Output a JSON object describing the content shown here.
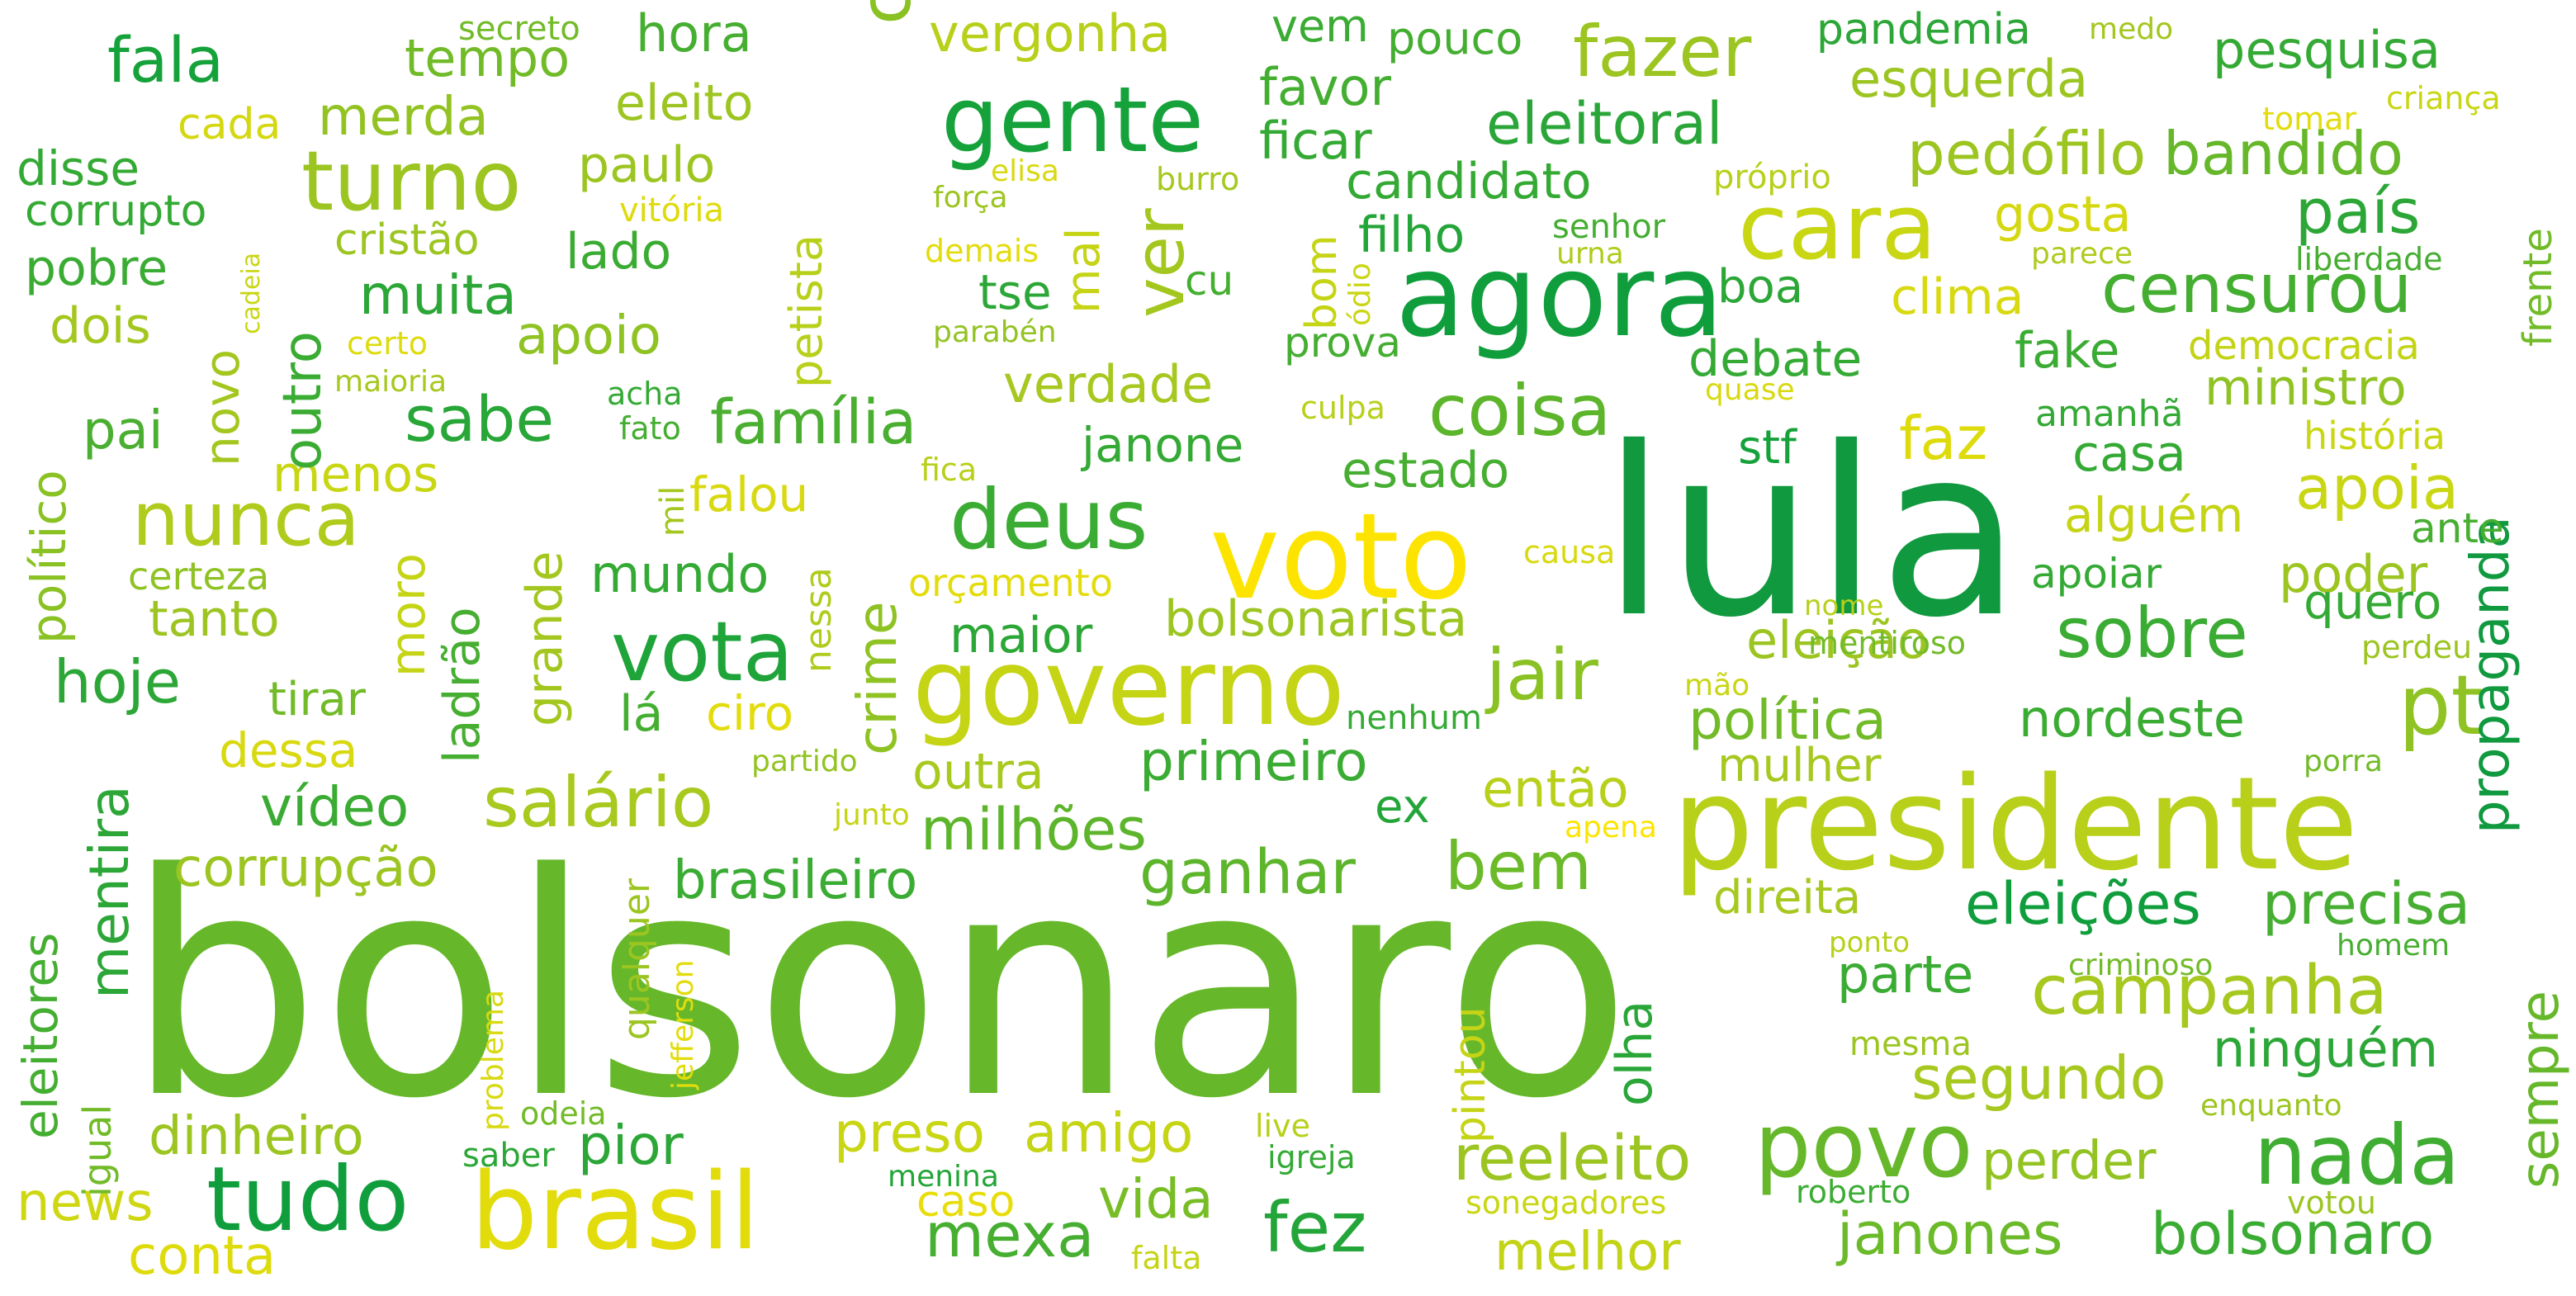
{
  "words": [
    {
      "text": "bolsonaro",
      "color": "#66b82a"
    },
    {
      "text": "lula",
      "color": "#10993e"
    },
    {
      "text": "presidente",
      "color": "#b8d01a"
    },
    {
      "text": "agora",
      "color": "#109e3c"
    },
    {
      "text": "voto",
      "color": "#fde400"
    },
    {
      "text": "governo",
      "color": "#c5d415"
    },
    {
      "text": "brasil",
      "color": "#e3dc0c"
    },
    {
      "text": "gente",
      "color": "#16a23a"
    },
    {
      "text": "tudo",
      "color": "#109e3c"
    },
    {
      "text": "povo",
      "color": "#66b82a"
    },
    {
      "text": "nada",
      "color": "#3ead32"
    },
    {
      "text": "cara",
      "color": "#c9d613"
    },
    {
      "text": "pt",
      "color": "#8fc223"
    },
    {
      "text": "deus",
      "color": "#3bac33"
    },
    {
      "text": "vota",
      "color": "#1fa43a"
    },
    {
      "text": "turno",
      "color": "#9cc521"
    },
    {
      "text": "fez",
      "color": "#24a539"
    },
    {
      "text": "coisa",
      "color": "#5db52c"
    },
    {
      "text": "contra",
      "color": "#8ac123"
    },
    {
      "text": "jair",
      "color": "#8ac123"
    },
    {
      "text": "fazer",
      "color": "#9cc521"
    },
    {
      "text": "sobre",
      "color": "#3bac33"
    },
    {
      "text": "salário",
      "color": "#a8c91e"
    },
    {
      "text": "campanha",
      "color": "#a6c81f"
    },
    {
      "text": "bem",
      "color": "#6bba29"
    },
    {
      "text": "censurou",
      "color": "#44ae31"
    },
    {
      "text": "ver",
      "color": "#a4c71f"
    },
    {
      "text": "nunca",
      "color": "#b0cb1c"
    },
    {
      "text": "reeleito",
      "color": "#9cc521"
    },
    {
      "text": "fala",
      "color": "#16a23a"
    },
    {
      "text": "país",
      "color": "#2ca737"
    },
    {
      "text": "hoje",
      "color": "#2ca737"
    },
    {
      "text": "janones",
      "color": "#6bba29"
    },
    {
      "text": "bolsonaro",
      "color": "#3bac33"
    },
    {
      "text": "família",
      "color": "#4aaf30"
    },
    {
      "text": "sabe",
      "color": "#28a638"
    },
    {
      "text": "mexa",
      "color": "#46ae31"
    },
    {
      "text": "ganhar",
      "color": "#5db52c"
    },
    {
      "text": "propaganda",
      "color": "#10993e"
    },
    {
      "text": "eleitoral",
      "color": "#2aa638"
    },
    {
      "text": "pedófilo",
      "color": "#9cc521"
    },
    {
      "text": "bandido",
      "color": "#66b82a"
    },
    {
      "text": "sempre",
      "color": "#66b82a"
    },
    {
      "text": "milhões",
      "color": "#5db52c"
    },
    {
      "text": "segundo",
      "color": "#a6c81f"
    },
    {
      "text": "apoia",
      "color": "#c9d613"
    },
    {
      "text": "precisa",
      "color": "#46ae31"
    },
    {
      "text": "eleições",
      "color": "#109e3c"
    },
    {
      "text": "faz",
      "color": "#dedb0d"
    },
    {
      "text": "política",
      "color": "#72bb28"
    },
    {
      "text": "primeiro",
      "color": "#3bac33"
    },
    {
      "text": "crime",
      "color": "#8fc223"
    },
    {
      "text": "eleitores",
      "color": "#44ae31"
    },
    {
      "text": "mentira",
      "color": "#2ca737"
    },
    {
      "text": "corrupção",
      "color": "#9cc521"
    },
    {
      "text": "brasileiro",
      "color": "#3bac33"
    },
    {
      "text": "dinheiro",
      "color": "#9cc521"
    },
    {
      "text": "vida",
      "color": "#78bd26"
    },
    {
      "text": "amigo",
      "color": "#c5d415"
    },
    {
      "text": "preso",
      "color": "#c9d613"
    },
    {
      "text": "pior",
      "color": "#2ca737"
    },
    {
      "text": "news",
      "color": "#cfd712"
    },
    {
      "text": "conta",
      "color": "#dedb0d"
    },
    {
      "text": "perder",
      "color": "#93c322"
    },
    {
      "text": "melhor",
      "color": "#c3d316"
    },
    {
      "text": "caso",
      "color": "#e8dd0b"
    },
    {
      "text": "vídeo",
      "color": "#3bac33"
    },
    {
      "text": "outra",
      "color": "#a8c91e"
    },
    {
      "text": "estado",
      "color": "#46ae31"
    },
    {
      "text": "então",
      "color": "#b8d01a"
    },
    {
      "text": "nordeste",
      "color": "#3bac33"
    },
    {
      "text": "ninguém",
      "color": "#2ca737"
    },
    {
      "text": "parte",
      "color": "#3bac33"
    },
    {
      "text": "olha",
      "color": "#2aa638"
    },
    {
      "text": "pintou",
      "color": "#c5d415"
    },
    {
      "text": "ex",
      "color": "#24a539"
    },
    {
      "text": "direita",
      "color": "#a6c81f"
    },
    {
      "text": "mulher",
      "color": "#a6c81f"
    },
    {
      "text": "maior",
      "color": "#2ca737"
    },
    {
      "text": "mundo",
      "color": "#34aa35"
    },
    {
      "text": "bolsonarista",
      "color": "#9cc521"
    },
    {
      "text": "eleição",
      "color": "#9cc521"
    },
    {
      "text": "poder",
      "color": "#9cc521"
    },
    {
      "text": "quero",
      "color": "#34aa35"
    },
    {
      "text": "tanto",
      "color": "#9cc521"
    },
    {
      "text": "lá",
      "color": "#44ae31"
    },
    {
      "text": "ciro",
      "color": "#e3dc0c"
    },
    {
      "text": "dessa",
      "color": "#d8d910"
    },
    {
      "text": "tirar",
      "color": "#72bb28"
    },
    {
      "text": "grande",
      "color": "#a4c71f"
    },
    {
      "text": "ladrão",
      "color": "#46ae31"
    },
    {
      "text": "moro",
      "color": "#c5d415"
    },
    {
      "text": "menos",
      "color": "#c9d613"
    },
    {
      "text": "pai",
      "color": "#4aaf30"
    },
    {
      "text": "falou",
      "color": "#d8d910"
    },
    {
      "text": "apoio",
      "color": "#8fc223"
    },
    {
      "text": "muita",
      "color": "#2ca737"
    },
    {
      "text": "pobre",
      "color": "#3bac33"
    },
    {
      "text": "outro",
      "color": "#3bac33"
    },
    {
      "text": "novo",
      "color": "#a4c71f"
    },
    {
      "text": "dois",
      "color": "#a4c71f"
    },
    {
      "text": "político",
      "color": "#8ac123"
    },
    {
      "text": "disse",
      "color": "#34aa35"
    },
    {
      "text": "corrupto",
      "color": "#34aa35"
    },
    {
      "text": "merda",
      "color": "#93c322"
    },
    {
      "text": "cada",
      "color": "#d5d811"
    },
    {
      "text": "tempo",
      "color": "#72bb28"
    },
    {
      "text": "hora",
      "color": "#46ae31"
    },
    {
      "text": "eleito",
      "color": "#9cc521"
    },
    {
      "text": "paulo",
      "color": "#9cc521"
    },
    {
      "text": "lado",
      "color": "#3bac33"
    },
    {
      "text": "cristão",
      "color": "#9cc521"
    },
    {
      "text": "petista",
      "color": "#b8d01a"
    },
    {
      "text": "vergonha",
      "color": "#b8d01a"
    },
    {
      "text": "vem",
      "color": "#3bac33"
    },
    {
      "text": "pouco",
      "color": "#44ae31"
    },
    {
      "text": "favor",
      "color": "#44ae31"
    },
    {
      "text": "ficar",
      "color": "#34aa35"
    },
    {
      "text": "candidato",
      "color": "#34aa35"
    },
    {
      "text": "filho",
      "color": "#24a539"
    },
    {
      "text": "boa",
      "color": "#2ca737"
    },
    {
      "text": "mal",
      "color": "#c5d415"
    },
    {
      "text": "bom",
      "color": "#c5d415"
    },
    {
      "text": "tse",
      "color": "#2ca737"
    },
    {
      "text": "cu",
      "color": "#44ae31"
    },
    {
      "text": "prova",
      "color": "#44ae31"
    },
    {
      "text": "verdade",
      "color": "#a6c81f"
    },
    {
      "text": "janone",
      "color": "#34aa35"
    },
    {
      "text": "debate",
      "color": "#34aa35"
    },
    {
      "text": "stf",
      "color": "#16a23a"
    },
    {
      "text": "casa",
      "color": "#34aa35"
    },
    {
      "text": "alguém",
      "color": "#c5d415"
    },
    {
      "text": "apoiar",
      "color": "#34aa35"
    },
    {
      "text": "ante",
      "color": "#46ae31"
    },
    {
      "text": "ministro",
      "color": "#8fc223"
    },
    {
      "text": "democracia",
      "color": "#c3d316"
    },
    {
      "text": "fake",
      "color": "#3bac33"
    },
    {
      "text": "clima",
      "color": "#d8d910"
    },
    {
      "text": "gosta",
      "color": "#d5d811"
    },
    {
      "text": "esquerda",
      "color": "#9cc521"
    },
    {
      "text": "pesquisa",
      "color": "#34aa35"
    },
    {
      "text": "pandemia",
      "color": "#2ca737"
    },
    {
      "text": "frente",
      "color": "#72bb28"
    },
    {
      "text": "liberdade",
      "color": "#46ae31"
    },
    {
      "text": "parece",
      "color": "#b0cb1c"
    },
    {
      "text": "história",
      "color": "#c9d613"
    },
    {
      "text": "amanhã",
      "color": "#34aa35"
    },
    {
      "text": "quase",
      "color": "#d8d910"
    },
    {
      "text": "medo",
      "color": "#a4c71f"
    },
    {
      "text": "tomar",
      "color": "#e3dc0c"
    },
    {
      "text": "criança",
      "color": "#c9d613"
    },
    {
      "text": "próprio",
      "color": "#b8d01a"
    },
    {
      "text": "senhor",
      "color": "#44ae31"
    },
    {
      "text": "urna",
      "color": "#b0cb1c"
    },
    {
      "text": "ódio",
      "color": "#c9d613"
    },
    {
      "text": "burro",
      "color": "#a6c81f"
    },
    {
      "text": "elisa",
      "color": "#d8d910"
    },
    {
      "text": "força",
      "color": "#9cc521"
    },
    {
      "text": "demais",
      "color": "#e3dc0c"
    },
    {
      "text": "parabén",
      "color": "#93c322"
    },
    {
      "text": "culpa",
      "color": "#b8d01a"
    },
    {
      "text": "acha",
      "color": "#34aa35"
    },
    {
      "text": "fato",
      "color": "#44ae31"
    },
    {
      "text": "mil",
      "color": "#a4c71f"
    },
    {
      "text": "fica",
      "color": "#b8d01a"
    },
    {
      "text": "certo",
      "color": "#dedb0d"
    },
    {
      "text": "maioria",
      "color": "#a6c81f"
    },
    {
      "text": "cadeia",
      "color": "#c9d613"
    },
    {
      "text": "secreto",
      "color": "#72bb28"
    },
    {
      "text": "vitória",
      "color": "#dedb0d"
    },
    {
      "text": "certeza",
      "color": "#8fc223"
    },
    {
      "text": "nessa",
      "color": "#b0cb1c"
    },
    {
      "text": "orçamento",
      "color": "#e3dc0c"
    },
    {
      "text": "causa",
      "color": "#d8d910"
    },
    {
      "text": "nome",
      "color": "#b8d01a"
    },
    {
      "text": "mão",
      "color": "#c9d613"
    },
    {
      "text": "mentiroso",
      "color": "#72bb28"
    },
    {
      "text": "perdeu",
      "color": "#9cc521"
    },
    {
      "text": "porra",
      "color": "#72bb28"
    },
    {
      "text": "nenhum",
      "color": "#34aa35"
    },
    {
      "text": "partido",
      "color": "#93c322"
    },
    {
      "text": "junto",
      "color": "#c5d415"
    },
    {
      "text": "apena",
      "color": "#fde400"
    },
    {
      "text": "qualquer",
      "color": "#9cc521"
    },
    {
      "text": "jefferson",
      "color": "#e3dc0c"
    },
    {
      "text": "problema",
      "color": "#d8d910"
    },
    {
      "text": "igual",
      "color": "#72bb28"
    },
    {
      "text": "ponto",
      "color": "#b8d01a"
    },
    {
      "text": "criminoso",
      "color": "#72bb28"
    },
    {
      "text": "homem",
      "color": "#46ae31"
    },
    {
      "text": "mesma",
      "color": "#9cc521"
    },
    {
      "text": "enquanto",
      "color": "#9cc521"
    },
    {
      "text": "odeia",
      "color": "#72bb28"
    },
    {
      "text": "saber",
      "color": "#2ca737"
    },
    {
      "text": "live",
      "color": "#b8d01a"
    },
    {
      "text": "igreja",
      "color": "#34aa35"
    },
    {
      "text": "menina",
      "color": "#24a539"
    },
    {
      "text": "sonegadores",
      "color": "#c9d613"
    },
    {
      "text": "roberto",
      "color": "#3bac33"
    },
    {
      "text": "votou",
      "color": "#9cc521"
    },
    {
      "text": "falta",
      "color": "#c5d415"
    }
  ]
}
